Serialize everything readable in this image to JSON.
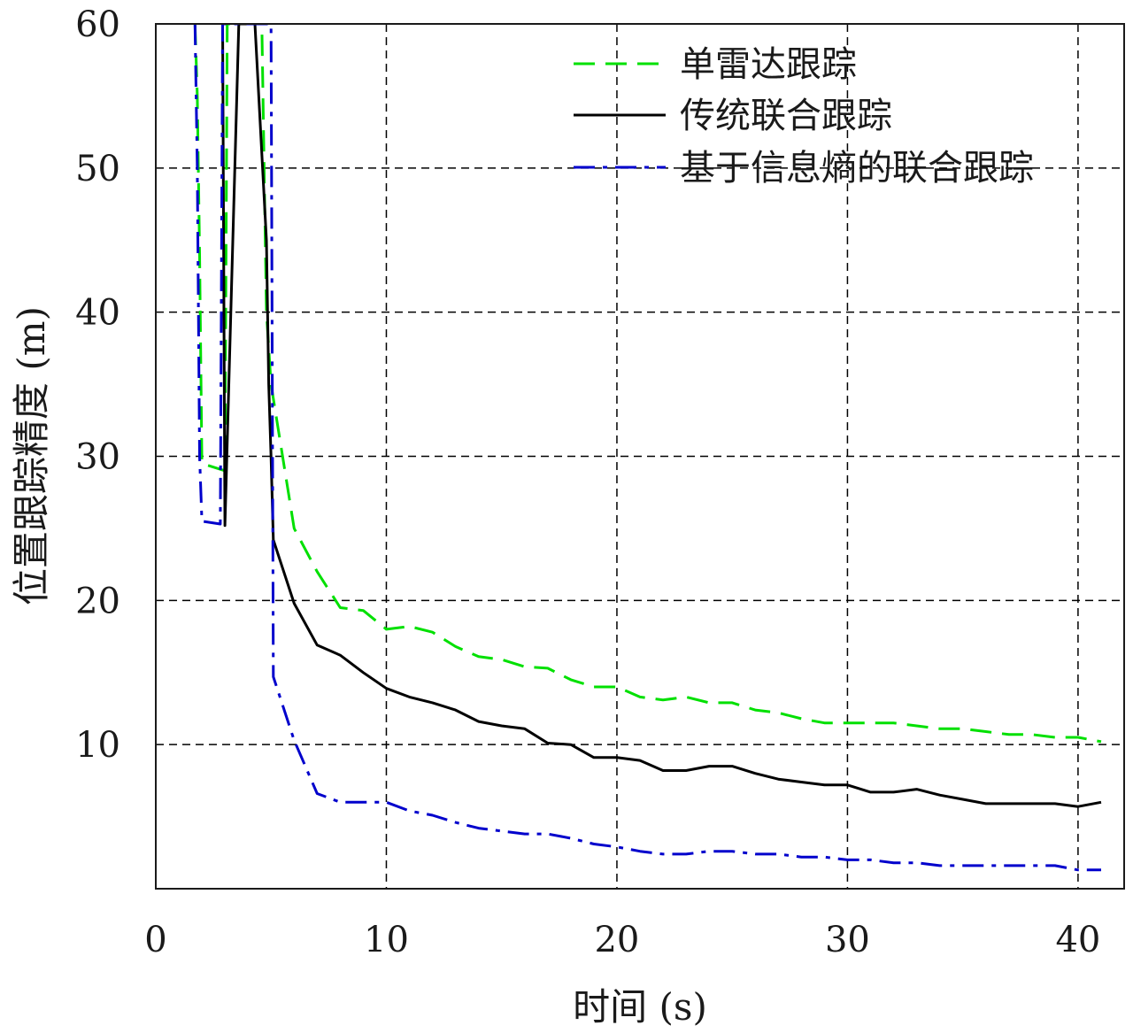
{
  "chart_data": {
    "type": "line",
    "title": "",
    "xlabel": "时间 (s)",
    "ylabel": "位置跟踪精度 (m)",
    "xlim": [
      0,
      42
    ],
    "ylim": [
      0,
      60
    ],
    "xticks": [
      0,
      10,
      20,
      30,
      40
    ],
    "yticks": [
      0,
      10,
      20,
      30,
      40,
      50,
      60
    ],
    "grid": true,
    "legend_position": "top-right",
    "series": [
      {
        "name": "单雷达跟踪",
        "color": "#00e000",
        "style": "dashed",
        "x": [
          1.7,
          1.8,
          1.9,
          2.0,
          3.0,
          3.1,
          3.5,
          3.6,
          4.6,
          4.8,
          5.0,
          6.0,
          7.0,
          8.0,
          9.0,
          10.0,
          11.0,
          12.0,
          13.0,
          14.0,
          15.0,
          16.0,
          17.0,
          18.0,
          19.0,
          20.0,
          21.0,
          22.0,
          23.0,
          24.0,
          25.0,
          26.0,
          27.0,
          28.0,
          29.0,
          30.0,
          31.0,
          32.0,
          33.0,
          34.0,
          35.0,
          36.0,
          37.0,
          38.0,
          39.0,
          40.0,
          41.0
        ],
        "y": [
          60,
          55,
          44,
          29.5,
          29,
          60,
          60,
          60,
          60,
          40,
          35,
          25,
          22,
          19.5,
          19.3,
          18,
          18.2,
          17.8,
          16.8,
          16.1,
          15.9,
          15.4,
          15.3,
          14.5,
          14,
          14,
          13.3,
          13.1,
          13.3,
          12.9,
          12.9,
          12.4,
          12.2,
          11.8,
          11.5,
          11.5,
          11.5,
          11.5,
          11.3,
          11.1,
          11.1,
          10.9,
          10.7,
          10.7,
          10.5,
          10.5,
          10.2
        ]
      },
      {
        "name": "传统联合跟踪",
        "color": "#000000",
        "style": "solid",
        "x": [
          2.9,
          3.0,
          3.6,
          4.1,
          4.3,
          4.8,
          4.9,
          5.0,
          5.1,
          6.0,
          7.0,
          8.0,
          9.0,
          10.0,
          11.0,
          12.0,
          13.0,
          14.0,
          15.0,
          16.0,
          17.0,
          18.0,
          19.0,
          20.0,
          21.0,
          22.0,
          23.0,
          24.0,
          25.0,
          26.0,
          27.0,
          28.0,
          29.0,
          30.0,
          31.0,
          32.0,
          33.0,
          34.0,
          35.0,
          36.0,
          37.0,
          38.0,
          39.0,
          40.0,
          41.0
        ],
        "y": [
          60,
          25.2,
          60,
          60,
          60,
          45,
          35,
          30,
          24.2,
          19.8,
          16.9,
          16.2,
          15,
          13.9,
          13.3,
          12.9,
          12.4,
          11.6,
          11.3,
          11.1,
          10.1,
          10.0,
          9.1,
          9.1,
          8.9,
          8.2,
          8.2,
          8.5,
          8.5,
          8.0,
          7.6,
          7.4,
          7.2,
          7.2,
          6.7,
          6.7,
          6.9,
          6.5,
          6.2,
          5.9,
          5.9,
          5.9,
          5.9,
          5.7,
          6.0
        ]
      },
      {
        "name": "基于信息熵的联合跟踪",
        "color": "#0000cc",
        "style": "dashdot",
        "x": [
          1.7,
          1.8,
          1.9,
          2.0,
          2.8,
          2.9,
          3.0,
          5.0,
          5.1,
          6.0,
          7.0,
          8.0,
          9.0,
          10.0,
          11.0,
          12.0,
          13.0,
          14.0,
          15.0,
          16.0,
          17.0,
          18.0,
          19.0,
          20.0,
          21.0,
          22.0,
          23.0,
          24.0,
          25.0,
          26.0,
          27.0,
          28.0,
          29.0,
          30.0,
          31.0,
          32.0,
          33.0,
          34.0,
          35.0,
          36.0,
          37.0,
          38.0,
          39.0,
          40.0,
          41.0
        ],
        "y": [
          60,
          50,
          30,
          25.5,
          25.3,
          60,
          60,
          60,
          14.7,
          10.3,
          6.6,
          6.0,
          6.0,
          6.0,
          5.4,
          5.1,
          4.6,
          4.2,
          4.0,
          3.8,
          3.8,
          3.5,
          3.1,
          2.9,
          2.6,
          2.4,
          2.4,
          2.6,
          2.6,
          2.4,
          2.4,
          2.2,
          2.2,
          2.0,
          2.0,
          1.8,
          1.8,
          1.6,
          1.6,
          1.6,
          1.6,
          1.6,
          1.6,
          1.3,
          1.3
        ]
      }
    ]
  }
}
